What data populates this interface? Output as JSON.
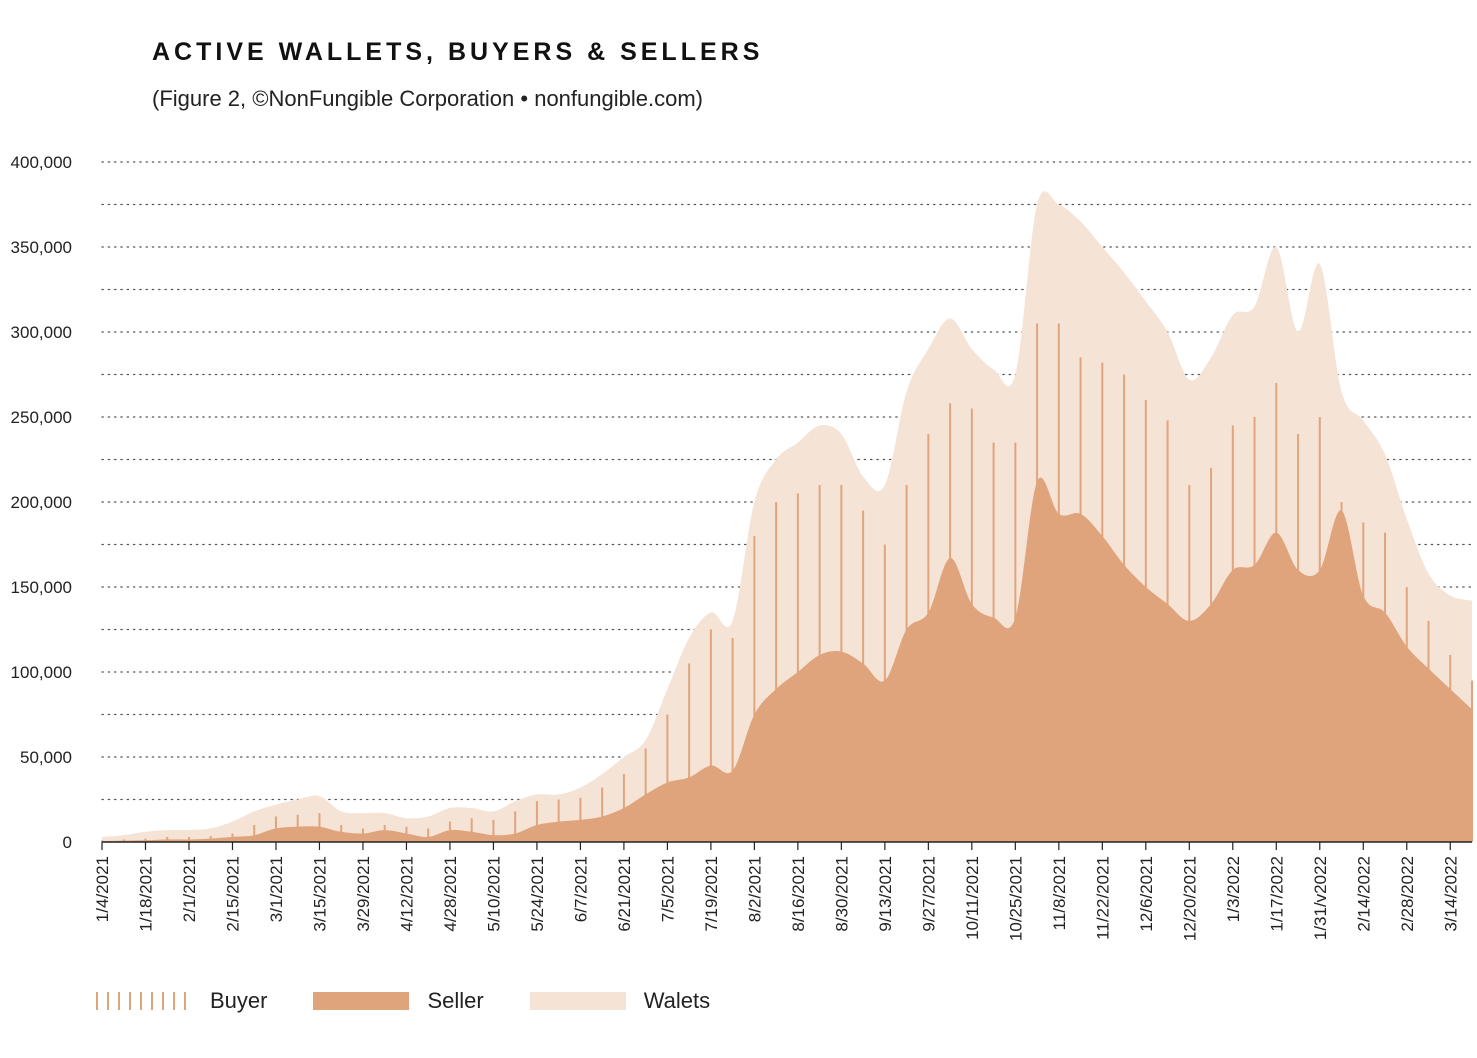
{
  "header": {
    "title": "ACTIVE WALLETS, BUYERS & SELLERS",
    "subtitle": "(Figure 2, ©NonFungible Corporation • nonfungible.com)"
  },
  "colors": {
    "wallets": "#f5e3d6",
    "seller": "#dfa47b",
    "buyer": "#e0a57d",
    "grid": "#555555"
  },
  "legend": [
    {
      "key": "buyer",
      "label": "Buyer"
    },
    {
      "key": "seller",
      "label": "Seller"
    },
    {
      "key": "wallets",
      "label": "Walets"
    }
  ],
  "chart_data": {
    "type": "area",
    "title": "ACTIVE WALLETS, BUYERS & SELLERS",
    "ylim": [
      0,
      400000
    ],
    "y_ticks": [
      0,
      50000,
      100000,
      150000,
      200000,
      250000,
      300000,
      350000,
      400000
    ],
    "y_tick_labels": [
      "0",
      "50,000",
      "100,000",
      "150,000",
      "200,000",
      "250,000",
      "300,000",
      "350,000",
      "400,000"
    ],
    "grid": "dotted-horizontal",
    "legend_position": "bottom-left",
    "x_tick_labels": [
      "1/4/2021",
      "1/18/2021",
      "2/1/2021",
      "2/15/2021",
      "3/1/2021",
      "3/15/2021",
      "3/29/2021",
      "4/12/2021",
      "4/28/2021",
      "5/10/2021",
      "5/24/2021",
      "6/7/2021",
      "6/21/2021",
      "7/5/2021",
      "7/19/2021",
      "8/2/2021",
      "8/16/2021",
      "8/30/2021",
      "9/13/2021",
      "9/27/2021",
      "10/11/2021",
      "10/25/2021",
      "11/8/2021",
      "11/22/2021",
      "12/6/2021",
      "12/20/2021",
      "1/3/2022",
      "1/17/2022",
      "1/31/v2022",
      "2/14/2022",
      "2/28/2022",
      "3/14/2022"
    ],
    "x": [
      "1/4/2021",
      "1/11/2021",
      "1/18/2021",
      "1/25/2021",
      "2/1/2021",
      "2/8/2021",
      "2/15/2021",
      "2/22/2021",
      "3/1/2021",
      "3/8/2021",
      "3/15/2021",
      "3/22/2021",
      "3/29/2021",
      "4/5/2021",
      "4/12/2021",
      "4/19/2021",
      "4/28/2021",
      "5/3/2021",
      "5/10/2021",
      "5/17/2021",
      "5/24/2021",
      "5/31/2021",
      "6/7/2021",
      "6/14/2021",
      "6/21/2021",
      "6/28/2021",
      "7/5/2021",
      "7/12/2021",
      "7/19/2021",
      "7/26/2021",
      "8/2/2021",
      "8/9/2021",
      "8/16/2021",
      "8/23/2021",
      "8/30/2021",
      "9/6/2021",
      "9/13/2021",
      "9/20/2021",
      "9/27/2021",
      "10/4/2021",
      "10/11/2021",
      "10/18/2021",
      "10/25/2021",
      "11/1/2021",
      "11/8/2021",
      "11/15/2021",
      "11/22/2021",
      "11/29/2021",
      "12/6/2021",
      "12/13/2021",
      "12/20/2021",
      "12/27/2021",
      "1/3/2022",
      "1/10/2022",
      "1/17/2022",
      "1/24/2022",
      "1/31/2022",
      "2/7/2022",
      "2/14/2022",
      "2/21/2022",
      "2/28/2022",
      "3/7/2022",
      "3/14/2022",
      "3/21/2022"
    ],
    "series": [
      {
        "name": "Walets",
        "values": [
          3000,
          4000,
          6000,
          7000,
          7000,
          8000,
          12000,
          18000,
          22000,
          25000,
          27000,
          18000,
          17000,
          17000,
          14000,
          15000,
          20000,
          20000,
          18000,
          24000,
          28000,
          28000,
          32000,
          40000,
          50000,
          60000,
          90000,
          120000,
          135000,
          130000,
          200000,
          225000,
          235000,
          245000,
          240000,
          215000,
          210000,
          265000,
          290000,
          308000,
          290000,
          278000,
          275000,
          375000,
          375000,
          365000,
          350000,
          335000,
          318000,
          300000,
          272000,
          285000,
          310000,
          315000,
          350000,
          300000,
          340000,
          265000,
          248000,
          228000,
          190000,
          158000,
          145000,
          142000
        ]
      },
      {
        "name": "Seller",
        "values": [
          500,
          800,
          1000,
          1500,
          1500,
          2000,
          3000,
          4000,
          8000,
          9000,
          9000,
          6000,
          5000,
          7000,
          5000,
          3000,
          7000,
          6000,
          4000,
          5000,
          10000,
          12000,
          13000,
          15000,
          20000,
          28000,
          35000,
          38000,
          45000,
          42000,
          75000,
          90000,
          100000,
          110000,
          112000,
          105000,
          95000,
          125000,
          135000,
          167000,
          140000,
          132000,
          132000,
          212000,
          193000,
          193000,
          180000,
          163000,
          150000,
          140000,
          130000,
          140000,
          160000,
          163000,
          182000,
          160000,
          160000,
          195000,
          145000,
          135000,
          115000,
          102000,
          90000,
          78000
        ]
      },
      {
        "name": "Buyer",
        "values": [
          1000,
          1500,
          2000,
          3000,
          3000,
          3500,
          5000,
          10000,
          15000,
          16000,
          17000,
          10000,
          8000,
          10000,
          9000,
          8000,
          12000,
          14000,
          13000,
          18000,
          24000,
          25000,
          26000,
          32000,
          40000,
          55000,
          75000,
          105000,
          125000,
          120000,
          180000,
          200000,
          205000,
          210000,
          210000,
          195000,
          175000,
          210000,
          240000,
          258000,
          255000,
          235000,
          235000,
          305000,
          305000,
          285000,
          282000,
          275000,
          260000,
          248000,
          210000,
          220000,
          245000,
          250000,
          270000,
          240000,
          250000,
          200000,
          188000,
          182000,
          150000,
          130000,
          110000,
          95000
        ]
      }
    ]
  }
}
